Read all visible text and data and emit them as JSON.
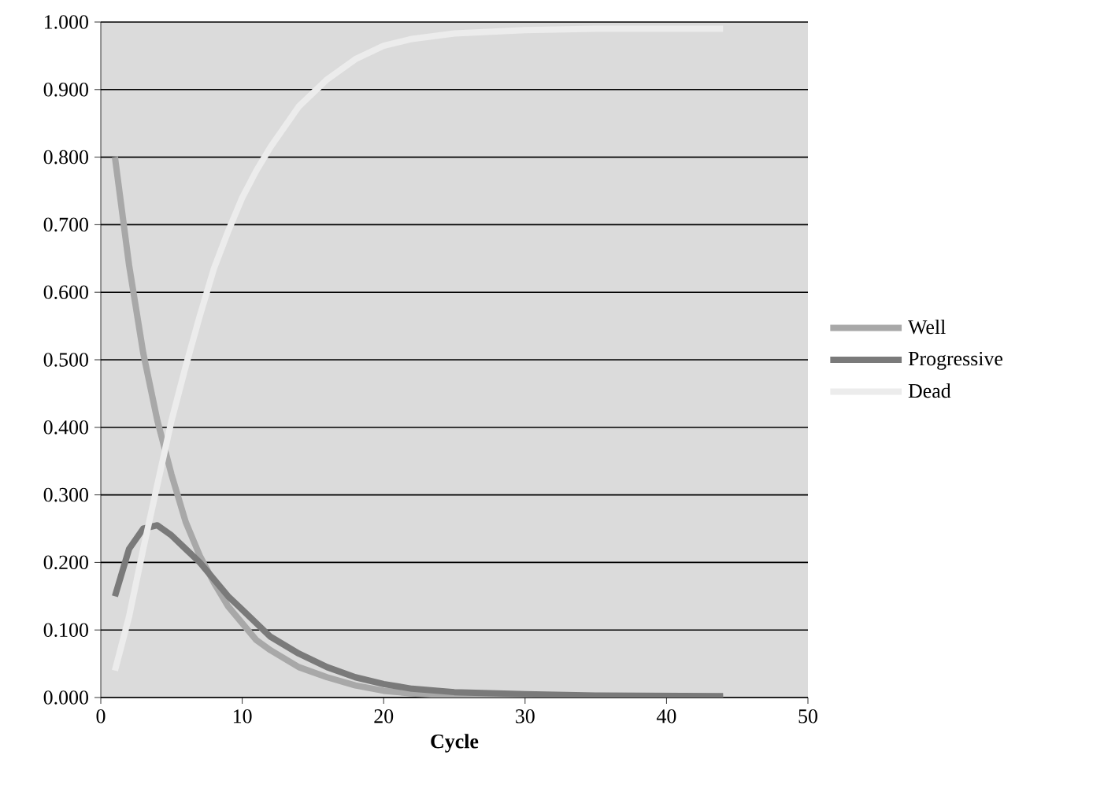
{
  "chart_data": {
    "type": "line",
    "xlabel": "Cycle",
    "xlim": [
      0,
      50
    ],
    "xticks": [
      0,
      10,
      20,
      30,
      40,
      50
    ],
    "ylim": [
      0,
      1
    ],
    "yticks": [
      {
        "value": 0,
        "label": "0.000"
      },
      {
        "value": 0.1,
        "label": "0.100"
      },
      {
        "value": 0.2,
        "label": "0.200"
      },
      {
        "value": 0.3,
        "label": "0.300"
      },
      {
        "value": 0.4,
        "label": "0.400"
      },
      {
        "value": 0.5,
        "label": "0.500"
      },
      {
        "value": 0.6,
        "label": "0.600"
      },
      {
        "value": 0.7,
        "label": "0.700"
      },
      {
        "value": 0.8,
        "label": "0.800"
      },
      {
        "value": 0.9,
        "label": "0.900"
      },
      {
        "value": 1,
        "label": "1.000"
      }
    ],
    "grid": "y",
    "legend": "right",
    "marker": "none",
    "line_style": "solid",
    "x": [
      1,
      2,
      3,
      4,
      5,
      6,
      7,
      8,
      9,
      10,
      11,
      12,
      14,
      16,
      18,
      20,
      22,
      25,
      30,
      35,
      44
    ],
    "series": [
      {
        "name": "Well",
        "color": "#a8a8a8",
        "values": [
          0.8,
          0.64,
          0.51,
          0.41,
          0.33,
          0.26,
          0.21,
          0.17,
          0.135,
          0.11,
          0.085,
          0.07,
          0.045,
          0.03,
          0.018,
          0.01,
          0.006,
          0.003,
          0.001,
          0.0,
          0.0
        ]
      },
      {
        "name": "Progressive",
        "color": "#7a7a7a",
        "values": [
          0.15,
          0.22,
          0.25,
          0.255,
          0.24,
          0.22,
          0.2,
          0.175,
          0.15,
          0.13,
          0.11,
          0.09,
          0.065,
          0.045,
          0.03,
          0.02,
          0.013,
          0.008,
          0.005,
          0.003,
          0.002
        ]
      },
      {
        "name": "Dead",
        "color": "#ececec",
        "values": [
          0.04,
          0.12,
          0.22,
          0.315,
          0.41,
          0.49,
          0.565,
          0.635,
          0.69,
          0.74,
          0.78,
          0.815,
          0.875,
          0.915,
          0.945,
          0.965,
          0.975,
          0.983,
          0.988,
          0.99,
          0.99
        ]
      }
    ]
  }
}
